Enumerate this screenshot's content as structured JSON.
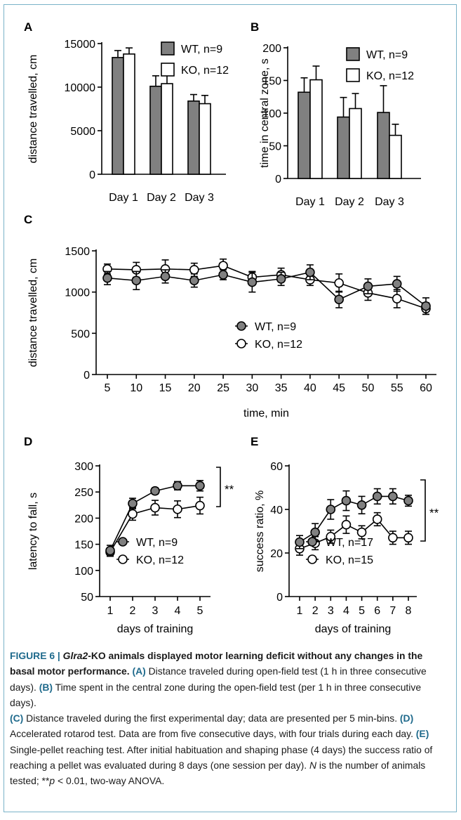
{
  "figure": {
    "panels": [
      "A",
      "B",
      "C",
      "D",
      "E"
    ]
  },
  "chart_data": [
    {
      "panel": "A",
      "type": "bar",
      "categories": [
        "Day 1",
        "Day 2",
        "Day 3"
      ],
      "ylabel": "distance travelled, cm",
      "ylim": [
        0,
        15000
      ],
      "yticks": [
        0,
        5000,
        10000,
        15000
      ],
      "series": [
        {
          "name": "WT, n=9",
          "values": [
            13400,
            10100,
            8400
          ],
          "errors": [
            800,
            1200,
            750
          ],
          "color": "#808080"
        },
        {
          "name": "KO, n=12",
          "values": [
            13800,
            10400,
            8100
          ],
          "errors": [
            700,
            1000,
            950
          ],
          "color": "#ffffff"
        }
      ],
      "legend_position": "top-right"
    },
    {
      "panel": "B",
      "type": "bar",
      "categories": [
        "Day 1",
        "Day 2",
        "Day 3"
      ],
      "ylabel": "time in central zone, s",
      "ylim": [
        0,
        200
      ],
      "yticks": [
        0,
        50,
        100,
        150,
        200
      ],
      "series": [
        {
          "name": "WT, n=9",
          "values": [
            132,
            94,
            101
          ],
          "errors": [
            22,
            30,
            41
          ],
          "color": "#808080"
        },
        {
          "name": "KO, n=12",
          "values": [
            151,
            107,
            66
          ],
          "errors": [
            21,
            23,
            17
          ],
          "color": "#ffffff"
        }
      ],
      "legend_position": "top-right"
    },
    {
      "panel": "C",
      "type": "line",
      "x": [
        5,
        10,
        15,
        20,
        25,
        30,
        35,
        40,
        45,
        50,
        55,
        60
      ],
      "xlabel": "time, min",
      "ylabel": "distance travelled, cm",
      "ylim": [
        0,
        1500
      ],
      "yticks": [
        0,
        500,
        1000,
        1500
      ],
      "series": [
        {
          "name": "WT, n=9",
          "values": [
            1170,
            1140,
            1190,
            1140,
            1210,
            1120,
            1160,
            1240,
            910,
            1070,
            1100,
            830
          ],
          "errors": [
            80,
            110,
            80,
            80,
            60,
            120,
            80,
            90,
            100,
            90,
            90,
            100
          ],
          "color": "#808080"
        },
        {
          "name": "KO, n=12",
          "values": [
            1280,
            1270,
            1280,
            1270,
            1320,
            1180,
            1210,
            1150,
            1110,
            990,
            920,
            800
          ],
          "errors": [
            60,
            90,
            110,
            80,
            80,
            70,
            80,
            70,
            110,
            90,
            110,
            70
          ],
          "color": "#ffffff"
        }
      ],
      "legend_position": "bottom-right"
    },
    {
      "panel": "D",
      "type": "line",
      "x": [
        1,
        2,
        3,
        4,
        5
      ],
      "xlabel": "days of training",
      "ylabel": "latency to fall, s",
      "ylim": [
        50,
        300
      ],
      "yticks": [
        50,
        100,
        150,
        200,
        250,
        300
      ],
      "series": [
        {
          "name": "WT, n=9",
          "values": [
            138,
            228,
            252,
            262,
            262
          ],
          "errors": [
            10,
            10,
            6,
            8,
            10
          ],
          "color": "#808080"
        },
        {
          "name": "KO,  n=12",
          "values": [
            135,
            208,
            220,
            217,
            224
          ],
          "errors": [
            8,
            12,
            14,
            16,
            16
          ],
          "color": "#ffffff"
        }
      ],
      "annotation": "**",
      "legend_position": "bottom-right"
    },
    {
      "panel": "E",
      "type": "line",
      "x": [
        1,
        2,
        3,
        4,
        5,
        6,
        7,
        8
      ],
      "xlabel": "days of training",
      "ylabel": "success ratio, %",
      "ylim": [
        0,
        60
      ],
      "yticks": [
        0,
        20,
        40,
        60
      ],
      "series": [
        {
          "name": "WT, n=17",
          "values": [
            25,
            29.5,
            40,
            44,
            42,
            46,
            46,
            44
          ],
          "errors": [
            3,
            4,
            4.5,
            4.5,
            4,
            3.5,
            3.5,
            2.5
          ],
          "color": "#808080"
        },
        {
          "name": "KO, n=15",
          "values": [
            22,
            24.5,
            27.5,
            33,
            29.5,
            35.5,
            27,
            27
          ],
          "errors": [
            3,
            3,
            3,
            4,
            3,
            3,
            3,
            3
          ],
          "color": "#ffffff"
        }
      ],
      "annotation": "**",
      "legend_position": "bottom-right"
    }
  ],
  "caption": {
    "label": "FIGURE 6 |",
    "gene": "Glra2",
    "title_rest": "-KO animals displayed motor learning deficit without any changes in the basal motor performance.",
    "A_label": "(A)",
    "A_text": "Distance traveled during open-field test (1 h in three consecutive days).",
    "B_label": "(B)",
    "B_text": "Time spent in the central zone during the open-field test (per 1 h in three consecutive days).",
    "C_label": "(C)",
    "C_text": "Distance traveled during the first experimental day; data are presented per 5 min-bins.",
    "D_label": "(D)",
    "D_text": "Accelerated rotarod test. Data are from five consecutive days, with four trials during each day.",
    "E_label": "(E)",
    "E_text": "Single-pellet reaching test. After initial habituation and shaping phase (4 days) the success ratio of reaching a pellet was evaluated during 8 days (one session per day).",
    "N_italic": "N",
    "N_text": "is the number of animals tested; **",
    "p_italic": "p",
    "p_text": "< 0.01, two-way ANOVA."
  }
}
